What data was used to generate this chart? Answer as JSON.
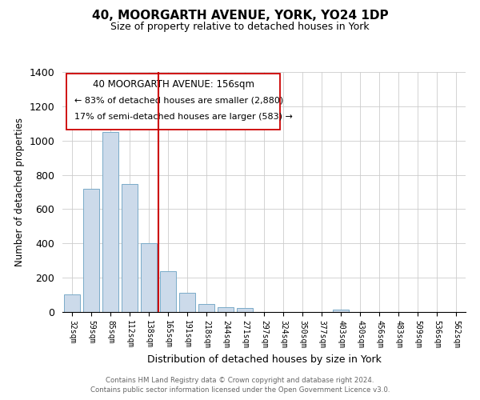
{
  "title_line1": "40, MOORGARTH AVENUE, YORK, YO24 1DP",
  "title_line2": "Size of property relative to detached houses in York",
  "xlabel": "Distribution of detached houses by size in York",
  "ylabel": "Number of detached properties",
  "bar_color": "#ccdaea",
  "bar_edge_color": "#7aaac8",
  "vline_color": "#cc0000",
  "categories": [
    "32sqm",
    "59sqm",
    "85sqm",
    "112sqm",
    "138sqm",
    "165sqm",
    "191sqm",
    "218sqm",
    "244sqm",
    "271sqm",
    "297sqm",
    "324sqm",
    "350sqm",
    "377sqm",
    "403sqm",
    "430sqm",
    "456sqm",
    "483sqm",
    "509sqm",
    "536sqm",
    "562sqm"
  ],
  "values": [
    105,
    718,
    1050,
    748,
    400,
    240,
    110,
    48,
    28,
    22,
    0,
    0,
    0,
    0,
    12,
    0,
    0,
    0,
    0,
    0,
    0
  ],
  "ylim": [
    0,
    1400
  ],
  "yticks": [
    0,
    200,
    400,
    600,
    800,
    1000,
    1200,
    1400
  ],
  "annotation_line1": "40 MOORGARTH AVENUE: 156sqm",
  "annotation_line2": "← 83% of detached houses are smaller (2,880)",
  "annotation_line3": "17% of semi-detached houses are larger (583) →",
  "footer_line1": "Contains HM Land Registry data © Crown copyright and database right 2024.",
  "footer_line2": "Contains public sector information licensed under the Open Government Licence v3.0."
}
